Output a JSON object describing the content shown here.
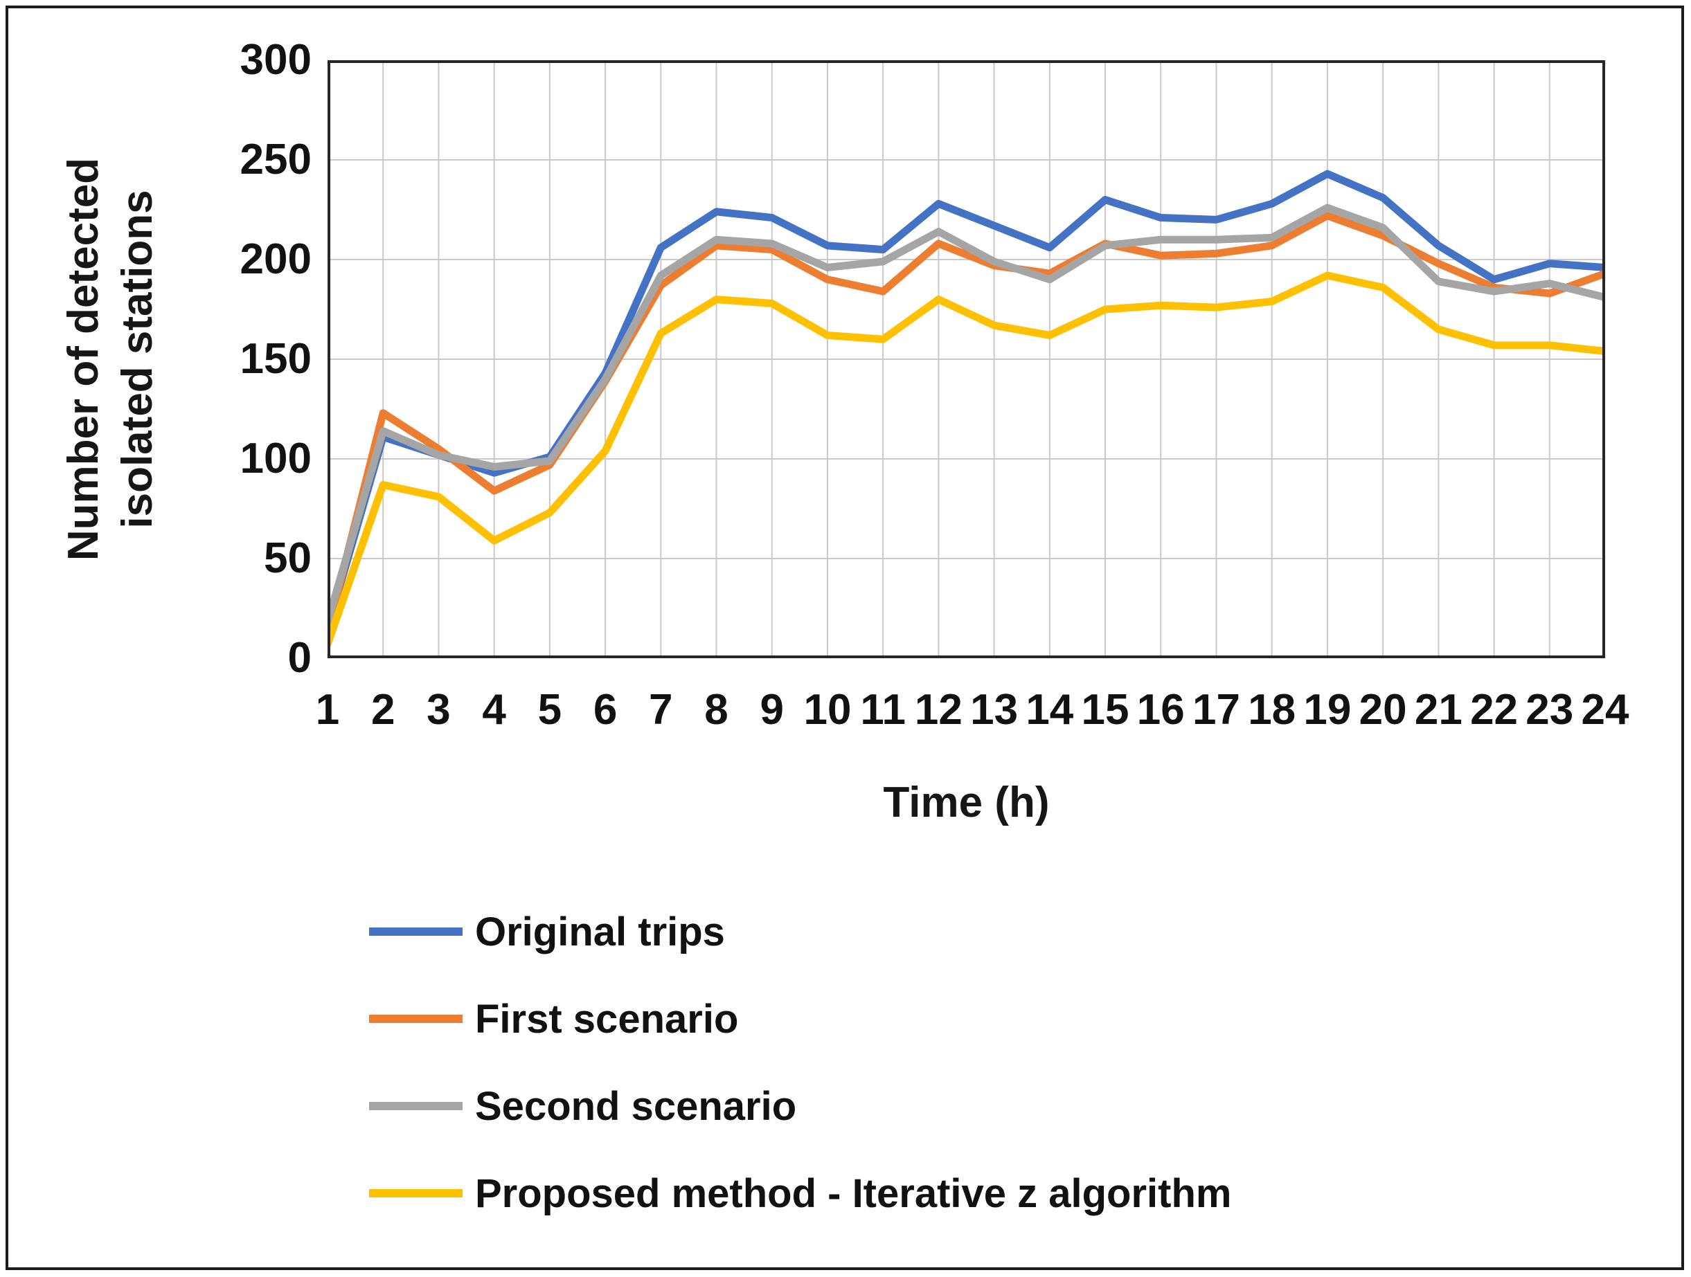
{
  "figure": {
    "background": "#ffffff",
    "border_color": "#1c1c1c"
  },
  "chart_data": {
    "type": "line",
    "title": "",
    "xlabel": "Time (h)",
    "ylabel_lines": [
      "Number of detected",
      "isolated stations"
    ],
    "x": [
      1,
      2,
      3,
      4,
      5,
      6,
      7,
      8,
      9,
      10,
      11,
      12,
      13,
      14,
      15,
      16,
      17,
      18,
      19,
      20,
      21,
      22,
      23,
      24
    ],
    "ylim": [
      0,
      300
    ],
    "yticks": [
      0,
      50,
      100,
      150,
      200,
      250,
      300
    ],
    "grid": true,
    "legend_position": "bottom-left",
    "gridline_color": "#c9c9c9",
    "plot_border_color": "#262626",
    "series": [
      {
        "name": "Original trips",
        "color": "#4472C4",
        "values": [
          15,
          111,
          102,
          93,
          101,
          143,
          206,
          224,
          221,
          207,
          205,
          228,
          217,
          206,
          230,
          221,
          220,
          228,
          243,
          231,
          207,
          190,
          198,
          196
        ]
      },
      {
        "name": "First scenario",
        "color": "#ED7D31",
        "values": [
          13,
          123,
          105,
          84,
          97,
          139,
          187,
          207,
          205,
          190,
          184,
          208,
          197,
          193,
          208,
          202,
          203,
          207,
          222,
          212,
          198,
          186,
          183,
          193
        ]
      },
      {
        "name": "Second scenario",
        "color": "#A5A5A5",
        "values": [
          18,
          114,
          102,
          96,
          99,
          140,
          192,
          210,
          208,
          196,
          199,
          214,
          199,
          190,
          207,
          210,
          210,
          211,
          226,
          216,
          189,
          184,
          188,
          181
        ]
      },
      {
        "name": "Proposed method - Iterative z algorithm",
        "color": "#FFC000",
        "values": [
          7,
          87,
          81,
          59,
          73,
          104,
          163,
          180,
          178,
          162,
          160,
          180,
          167,
          162,
          175,
          177,
          176,
          179,
          192,
          186,
          165,
          157,
          157,
          154
        ]
      }
    ]
  }
}
